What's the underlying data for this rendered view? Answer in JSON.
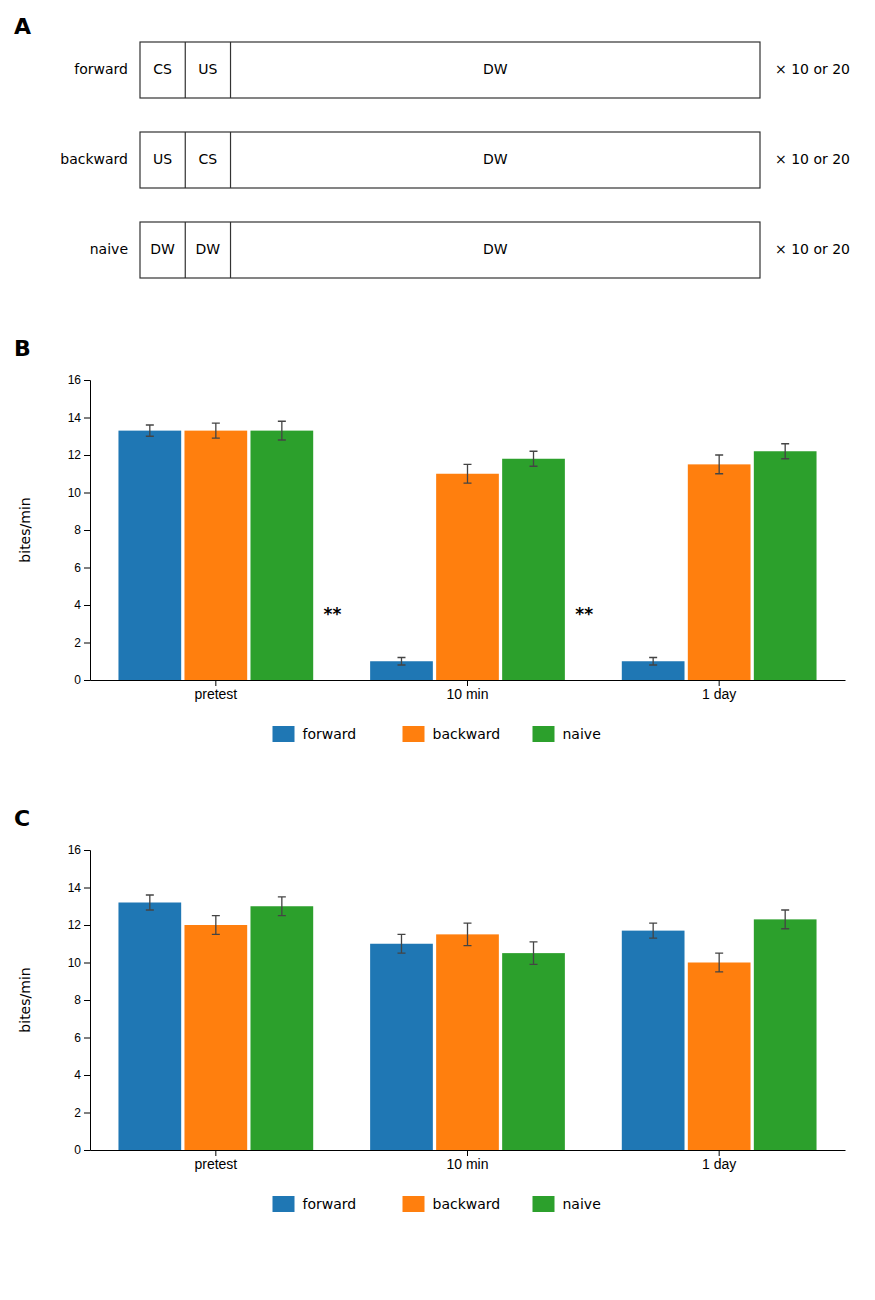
{
  "chart_data": [
    {
      "type": "diagram",
      "title": "A",
      "categories": [
        "forward",
        "backward",
        "naive"
      ],
      "cells": [
        [
          "CS",
          "US",
          "DW"
        ],
        [
          "US",
          "CS",
          "DW"
        ],
        [
          "DW",
          "DW",
          "DW"
        ]
      ],
      "annotations": [
        {
          "text": "× 10 or 20"
        }
      ]
    },
    {
      "type": "bar",
      "title": "B",
      "categories": [
        "pretest",
        "10 min",
        "1 day"
      ],
      "series": [
        {
          "name": "forward",
          "values": [
            13.3,
            1.0,
            1.0
          ],
          "errors": [
            0.3,
            0.2,
            0.2
          ]
        },
        {
          "name": "backward",
          "values": [
            13.3,
            11.0,
            11.5
          ],
          "errors": [
            0.4,
            0.5,
            0.5
          ]
        },
        {
          "name": "naive",
          "values": [
            13.3,
            11.8,
            12.2
          ],
          "errors": [
            0.5,
            0.4,
            0.4
          ]
        }
      ],
      "annotations": [
        {
          "text": "**",
          "x": "10 min",
          "y": 3.2
        },
        {
          "text": "**",
          "x": "1 day",
          "y": 3.2
        }
      ],
      "ylabel": "bites/min",
      "ylim": [
        0,
        16
      ],
      "yticks": [
        0,
        2,
        4,
        6,
        8,
        10,
        12,
        14,
        16
      ],
      "legend": "bottom"
    },
    {
      "type": "bar",
      "title": "C",
      "categories": [
        "pretest",
        "10 min",
        "1 day"
      ],
      "series": [
        {
          "name": "forward",
          "values": [
            13.2,
            11.0,
            11.7
          ],
          "errors": [
            0.4,
            0.5,
            0.4
          ]
        },
        {
          "name": "backward",
          "values": [
            12.0,
            11.5,
            10.0
          ],
          "errors": [
            0.5,
            0.6,
            0.5
          ]
        },
        {
          "name": "naive",
          "values": [
            13.0,
            10.5,
            12.3
          ],
          "errors": [
            0.5,
            0.6,
            0.5
          ]
        }
      ],
      "ylabel": "bites/min",
      "ylim": [
        0,
        16
      ],
      "yticks": [
        0,
        2,
        4,
        6,
        8,
        10,
        12,
        14,
        16
      ],
      "legend": "bottom"
    }
  ]
}
